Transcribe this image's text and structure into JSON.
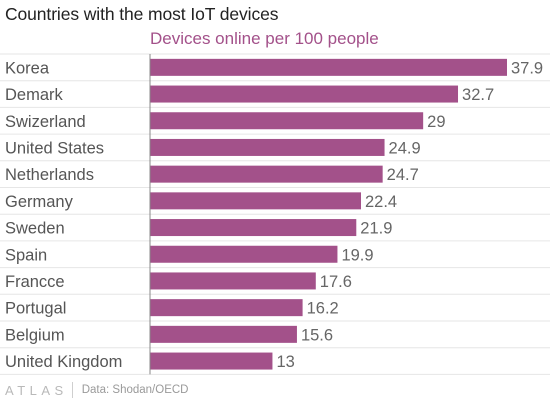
{
  "chart_data": {
    "type": "bar",
    "orientation": "horizontal",
    "title": "Countries with the most IoT devices",
    "subtitle": "Devices online per 100 people",
    "categories": [
      "Korea",
      "Demark",
      "Swizerland",
      "United States",
      "Netherlands",
      "Germany",
      "Sweden",
      "Spain",
      "Francce",
      "Portugal",
      "Belgium",
      "United Kingdom"
    ],
    "values": [
      37.9,
      32.7,
      29,
      24.9,
      24.7,
      22.4,
      21.9,
      19.9,
      17.6,
      16.2,
      15.6,
      13
    ],
    "value_labels": [
      "37.9",
      "32.7",
      "29",
      "24.9",
      "24.7",
      "22.4",
      "21.9",
      "19.9",
      "17.6",
      "16.2",
      "15.6",
      "13"
    ],
    "xlim": [
      0,
      37.9
    ],
    "grid": true,
    "colors": {
      "bar": "#a3518a",
      "grid": "#e6e6e6",
      "axis": "#888888"
    }
  },
  "footer": {
    "logo_text": "ATLAS",
    "source": "Data: Shodan/OECD"
  }
}
